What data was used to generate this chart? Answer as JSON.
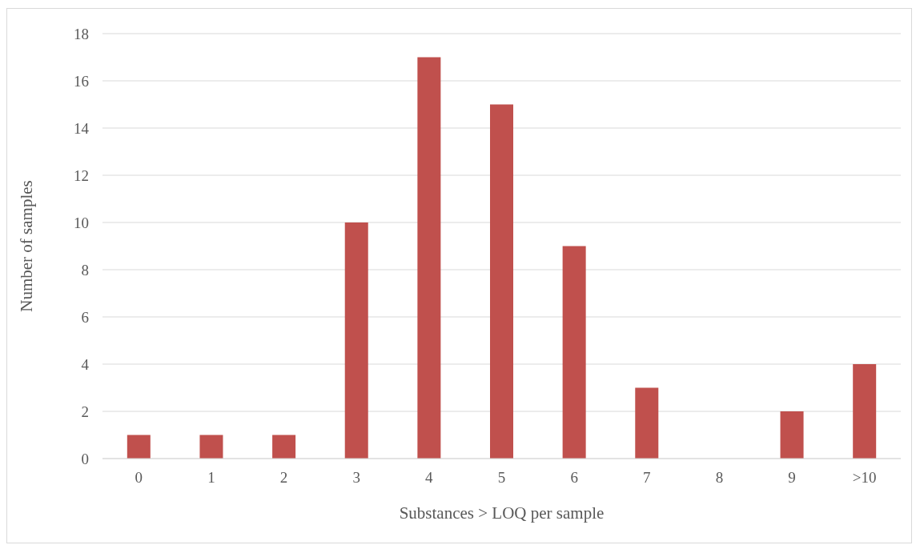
{
  "chart_data": {
    "type": "bar",
    "xlabel": "Substances > LOQ per sample",
    "ylabel": "Number of samples",
    "categories": [
      "0",
      "1",
      "2",
      "3",
      "4",
      "5",
      "6",
      "7",
      "8",
      "9",
      ">10"
    ],
    "values": [
      1,
      1,
      1,
      10,
      17,
      15,
      9,
      3,
      0,
      2,
      4
    ],
    "color": "#c0504d",
    "ylim": [
      0,
      18
    ],
    "yticks": [
      0,
      2,
      4,
      6,
      8,
      10,
      12,
      14,
      16,
      18
    ],
    "grid": "y"
  }
}
